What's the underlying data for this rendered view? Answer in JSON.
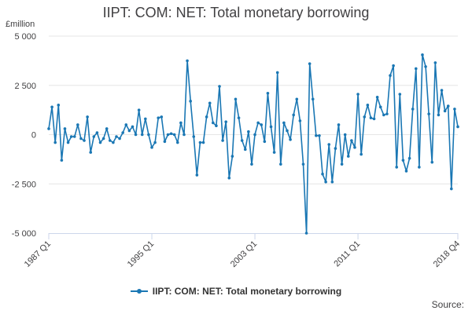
{
  "chart_data": {
    "type": "line",
    "title": "IIPT: COM: NET: Total monetary borrowing",
    "ylabel": "£million",
    "ylim": [
      -5000,
      5000
    ],
    "yticks": [
      5000,
      2500,
      0,
      -2500,
      -5000
    ],
    "ytick_labels": [
      "5 000",
      "2 500",
      "0",
      "-2 500",
      "-5 000"
    ],
    "xtick_labels": [
      "1987 Q1",
      "1995 Q1",
      "2003 Q1",
      "2011 Q1",
      "2018 Q4"
    ],
    "xtick_index": [
      0,
      32,
      64,
      96,
      127
    ],
    "grid": true,
    "legend": "bottom",
    "series": [
      {
        "name": "IIPT: COM: NET: Total monetary borrowing",
        "color": "#1a77b4",
        "values": [
          300,
          1400,
          -400,
          1500,
          -1300,
          300,
          -400,
          -100,
          -100,
          500,
          -200,
          -300,
          900,
          -900,
          -100,
          100,
          -400,
          -200,
          300,
          -300,
          -400,
          -100,
          -200,
          100,
          500,
          200,
          400,
          0,
          1250,
          0,
          800,
          0,
          -650,
          -400,
          850,
          900,
          -350,
          0,
          50,
          0,
          -400,
          600,
          0,
          3750,
          1700,
          -100,
          -2050,
          -400,
          -400,
          900,
          1600,
          600,
          450,
          2450,
          -300,
          650,
          -2200,
          -1100,
          1800,
          850,
          -300,
          -750,
          150,
          -1500,
          0,
          600,
          500,
          -350,
          2100,
          400,
          -900,
          3150,
          -1500,
          600,
          200,
          -250,
          1000,
          1800,
          700,
          -1500,
          -5000,
          3600,
          1800,
          -50,
          -50,
          -2000,
          -2400,
          -500,
          -2400,
          -700,
          500,
          -1500,
          0,
          -1100,
          -300,
          -650,
          2050,
          -1000,
          900,
          1500,
          850,
          800,
          1900,
          1400,
          1000,
          1050,
          3000,
          3500,
          -1650,
          2050,
          -1300,
          -1850,
          -1200,
          1300,
          3350,
          -1650,
          4050,
          3450,
          1050,
          -1400,
          3650,
          1000,
          2250,
          1200,
          1450,
          -2750,
          1300,
          400
        ]
      }
    ]
  },
  "credit": "Source:"
}
